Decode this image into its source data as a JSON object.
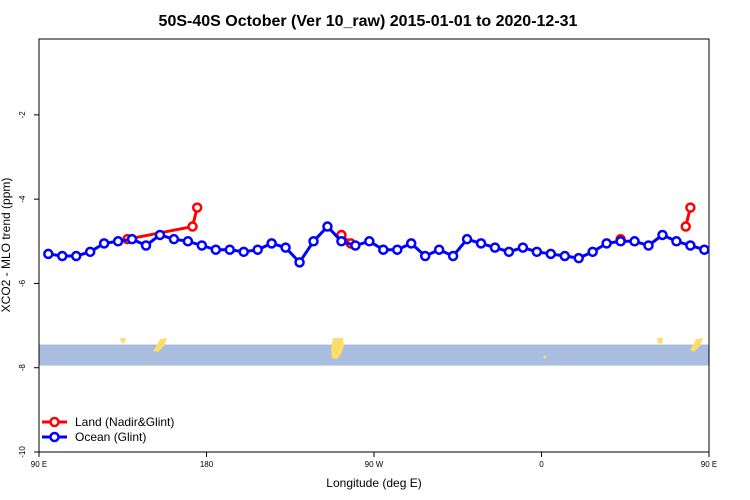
{
  "chart_data": {
    "type": "line",
    "title": "50S-40S October (Ver 10_raw)   2015-01-01 to 2020-12-31",
    "xlabel": "Longitude (deg E)",
    "ylabel": "XCO2 - MLO trend (ppm)",
    "xlim": [
      90,
      450
    ],
    "ylim": [
      -10,
      -0.2
    ],
    "x_ticks": [
      {
        "value": 90,
        "label": "90 E"
      },
      {
        "value": 180,
        "label": "180"
      },
      {
        "value": 270,
        "label": "90 W"
      },
      {
        "value": 360,
        "label": "0"
      },
      {
        "value": 450,
        "label": "90 E"
      }
    ],
    "y_ticks": [
      -10,
      -8,
      -6,
      -4,
      -2
    ],
    "series": [
      {
        "name": "Land (Nadir&Glint)",
        "color": "#ff0000",
        "segments": [
          {
            "x": [
              137.5,
              172.5,
              175.0
            ],
            "y": [
              -4.95,
              -4.65,
              -4.2
            ]
          },
          {
            "x": [
              252.5,
              257.5
            ],
            "y": [
              -4.85,
              -5.05
            ]
          },
          {
            "x": [
              402.5
            ],
            "y": [
              -4.95
            ]
          },
          {
            "x": [
              437.5,
              440.0
            ],
            "y": [
              -4.65,
              -4.2
            ]
          }
        ]
      },
      {
        "name": "Ocean (Glint)",
        "color": "#0000ff",
        "x": [
          95.0,
          102.5,
          110.0,
          117.5,
          125.0,
          132.5,
          140.0,
          147.5,
          155.0,
          162.5,
          170.0,
          177.5,
          185.0,
          192.5,
          200.0,
          207.5,
          215.0,
          222.5,
          230.0,
          237.5,
          245.0,
          252.5,
          260.0,
          267.5,
          275.0,
          282.5,
          290.0,
          297.5,
          305.0,
          312.5,
          320.0,
          327.5,
          335.0,
          342.5,
          350.0,
          357.5,
          365.0,
          372.5,
          380.0,
          387.5,
          395.0,
          402.5,
          410.0,
          417.5,
          425.0,
          432.5,
          440.0,
          447.5
        ],
        "y": [
          -5.3,
          -5.35,
          -5.35,
          -5.25,
          -5.05,
          -5.0,
          -4.95,
          -5.1,
          -4.85,
          -4.95,
          -5.0,
          -5.1,
          -5.2,
          -5.2,
          -5.25,
          -5.2,
          -5.05,
          -5.15,
          -5.5,
          -5.0,
          -4.65,
          -5.0,
          -5.1,
          -5.0,
          -5.2,
          -5.2,
          -5.05,
          -5.35,
          -5.2,
          -5.35,
          -4.95,
          -5.05,
          -5.15,
          -5.25,
          -5.15,
          -5.25,
          -5.3,
          -5.35,
          -5.4,
          -5.25,
          -5.05,
          -5.0,
          -5.0,
          -5.1,
          -4.85,
          -5.0,
          -5.1,
          -5.2
        ]
      }
    ],
    "band": {
      "y_range": [
        -7.95,
        -7.45
      ],
      "color": "#a9bde0",
      "land_color": "#ffdd66"
    },
    "legend": {
      "position": "bottom-left"
    }
  }
}
